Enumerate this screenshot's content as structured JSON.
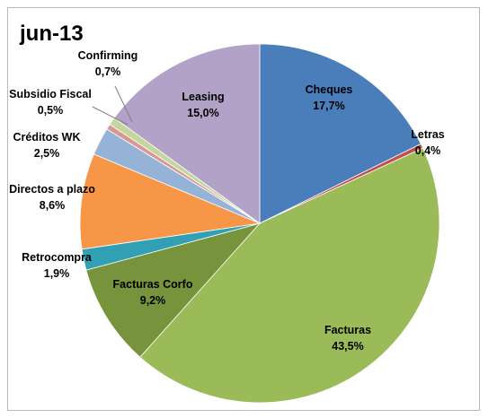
{
  "chart_data": {
    "type": "pie",
    "title": "jun-13",
    "categories": [
      "Cheques",
      "Letras",
      "Facturas",
      "Facturas Corfo",
      "Retrocompra",
      "Directos a plazo",
      "Créditos WK",
      "Subsidio Fiscal",
      "Confirming",
      "Leasing"
    ],
    "values": [
      17.7,
      0.4,
      43.5,
      9.2,
      1.9,
      8.6,
      2.5,
      0.5,
      0.7,
      15.0
    ],
    "value_labels": [
      "17,7%",
      "0,4%",
      "43,5%",
      "9,2%",
      "1,9%",
      "8,6%",
      "2,5%",
      "0,5%",
      "0,7%",
      "15,0%"
    ],
    "colors": [
      "#4a7ebb",
      "#c0504d",
      "#9bbb59",
      "#77933c",
      "#31a0b5",
      "#f79646",
      "#95b3d7",
      "#d99694",
      "#c3d69b",
      "#b3a2c7"
    ],
    "start_angle_deg": 0,
    "direction": "clockwise",
    "label_position": "outside-and-inside",
    "legend": "none"
  }
}
